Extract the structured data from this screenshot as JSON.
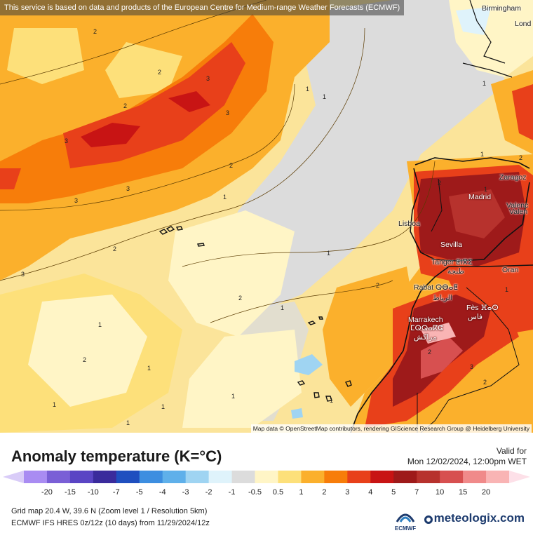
{
  "banner": "This service is based on data and products of the European Centre for Medium-range Weather Forecasts (ECMWF)",
  "cities": [
    {
      "name": "Birmingham",
      "light": false
    },
    {
      "name": "Lond",
      "light": false
    },
    {
      "name": "Zaragoz",
      "light": false
    },
    {
      "name": "Madrid",
      "light": true
    },
    {
      "name": "Valenc",
      "light": false
    },
    {
      "name": "Valen",
      "light": false
    },
    {
      "name": "Lisboa",
      "light": false
    },
    {
      "name": "Sevilla",
      "light": true
    },
    {
      "name": "Tanger ⵟⵏⴳⵉ",
      "light": false
    },
    {
      "name": "طنجة",
      "light": false
    },
    {
      "name": "Oran",
      "light": false
    },
    {
      "name": "Rabat ⵕⴱⴰⵟ",
      "light": false
    },
    {
      "name": "الرباط",
      "light": false
    },
    {
      "name": "Fès ⴼⴰⵙ",
      "light": true
    },
    {
      "name": "فاس",
      "light": true
    },
    {
      "name": "Marrakech",
      "light": true
    },
    {
      "name": "ⵎⵕⵕⴰⴽⵛ",
      "light": true
    },
    {
      "name": "مراكش",
      "light": true
    }
  ],
  "contour_labels": [
    "2",
    "2",
    "3",
    "2",
    "3",
    "3",
    "3",
    "3",
    "2",
    "3",
    "2",
    "2",
    "1",
    "1",
    "1",
    "1",
    "2",
    "1",
    "1",
    "1",
    "2",
    "2",
    "1",
    "1",
    "1",
    "1",
    "1",
    "1",
    "1",
    "2",
    "3",
    "2",
    "2",
    "1",
    "1"
  ],
  "attribution": "Map data © OpenStreetMap contributors, rendering GIScience Research Group @ Heidelberg University",
  "title": "Anomaly temperature (K=°C)",
  "valid_label": "Valid for",
  "valid_time": "Mon 12/02/2024, 12:00pm WET",
  "scale": {
    "colors": [
      "#a98cf2",
      "#7a5fd6",
      "#5a45c4",
      "#3a2b9c",
      "#1f4fbf",
      "#3d8ee0",
      "#5fb0ea",
      "#9fd4f2",
      "#dff3fb",
      "#dcdcdc",
      "#fff5c6",
      "#fde07a",
      "#fbb02c",
      "#f77d0a",
      "#e8401a",
      "#c81414",
      "#9e1a1a",
      "#b7322d",
      "#d75050",
      "#f08a8a",
      "#f9b4b4"
    ],
    "ticks": [
      "-20",
      "-15",
      "-10",
      "-7",
      "-5",
      "-4",
      "-3",
      "-2",
      "-1",
      "-0.5",
      "0.5",
      "1",
      "2",
      "3",
      "4",
      "5",
      "7",
      "10",
      "15",
      "20"
    ]
  },
  "info": {
    "grid_line": "Grid map 20.4 W, 39.6 N (Zoom level 1 / Resolution 5km)",
    "model_line": "ECMWF IFS HRES 0z/12z (10 days) from 11/29/2024/12z"
  },
  "brand": "meteologix.com",
  "ecmwf_logo": "ECMWF"
}
